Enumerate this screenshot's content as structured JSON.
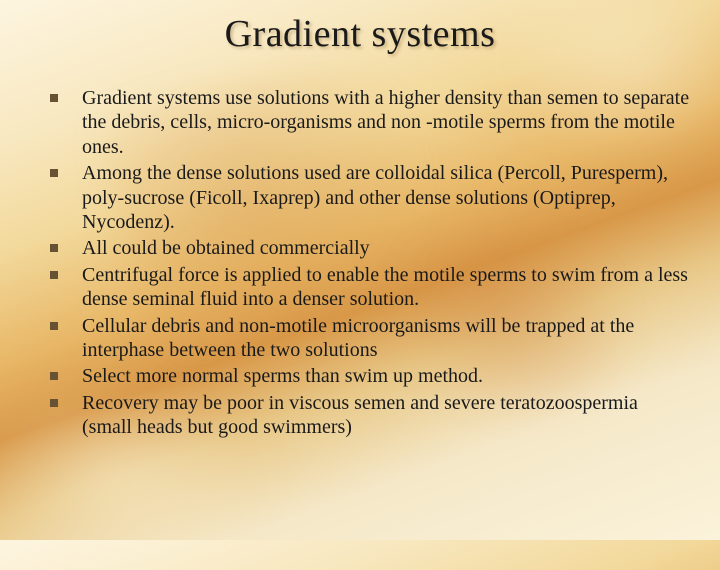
{
  "slide": {
    "title": "Gradient systems",
    "title_fontsize": 38,
    "body_fontsize": 20,
    "text_color": "#1a1a1a",
    "bullet_color": "#675233",
    "background_gradient": [
      "#fdf5e0",
      "#f8e8c0",
      "#f2d89a",
      "#e8b868",
      "#d89848",
      "#e8c888",
      "#f5e8c8",
      "#faf2da"
    ],
    "bullets": [
      "Gradient systems use solutions with a higher density than semen to separate the debris, cells, micro-organisms and non -motile sperms from the motile ones.",
      "Among the dense solutions used are  colloidal silica (Percoll, Puresperm), poly-sucrose (Ficoll, Ixaprep) and other dense solutions (Optiprep, Nycodenz).",
      "All could be obtained commercially",
      "Centrifugal force is applied to enable the motile sperms to swim from a less dense seminal fluid into a denser solution.",
      "Cellular debris and non-motile microorganisms will be trapped at the interphase between the two solutions",
      "Select more normal sperms than swim up method.",
      "Recovery may be poor in viscous semen and severe teratozoospermia (small heads but good swimmers)"
    ]
  }
}
